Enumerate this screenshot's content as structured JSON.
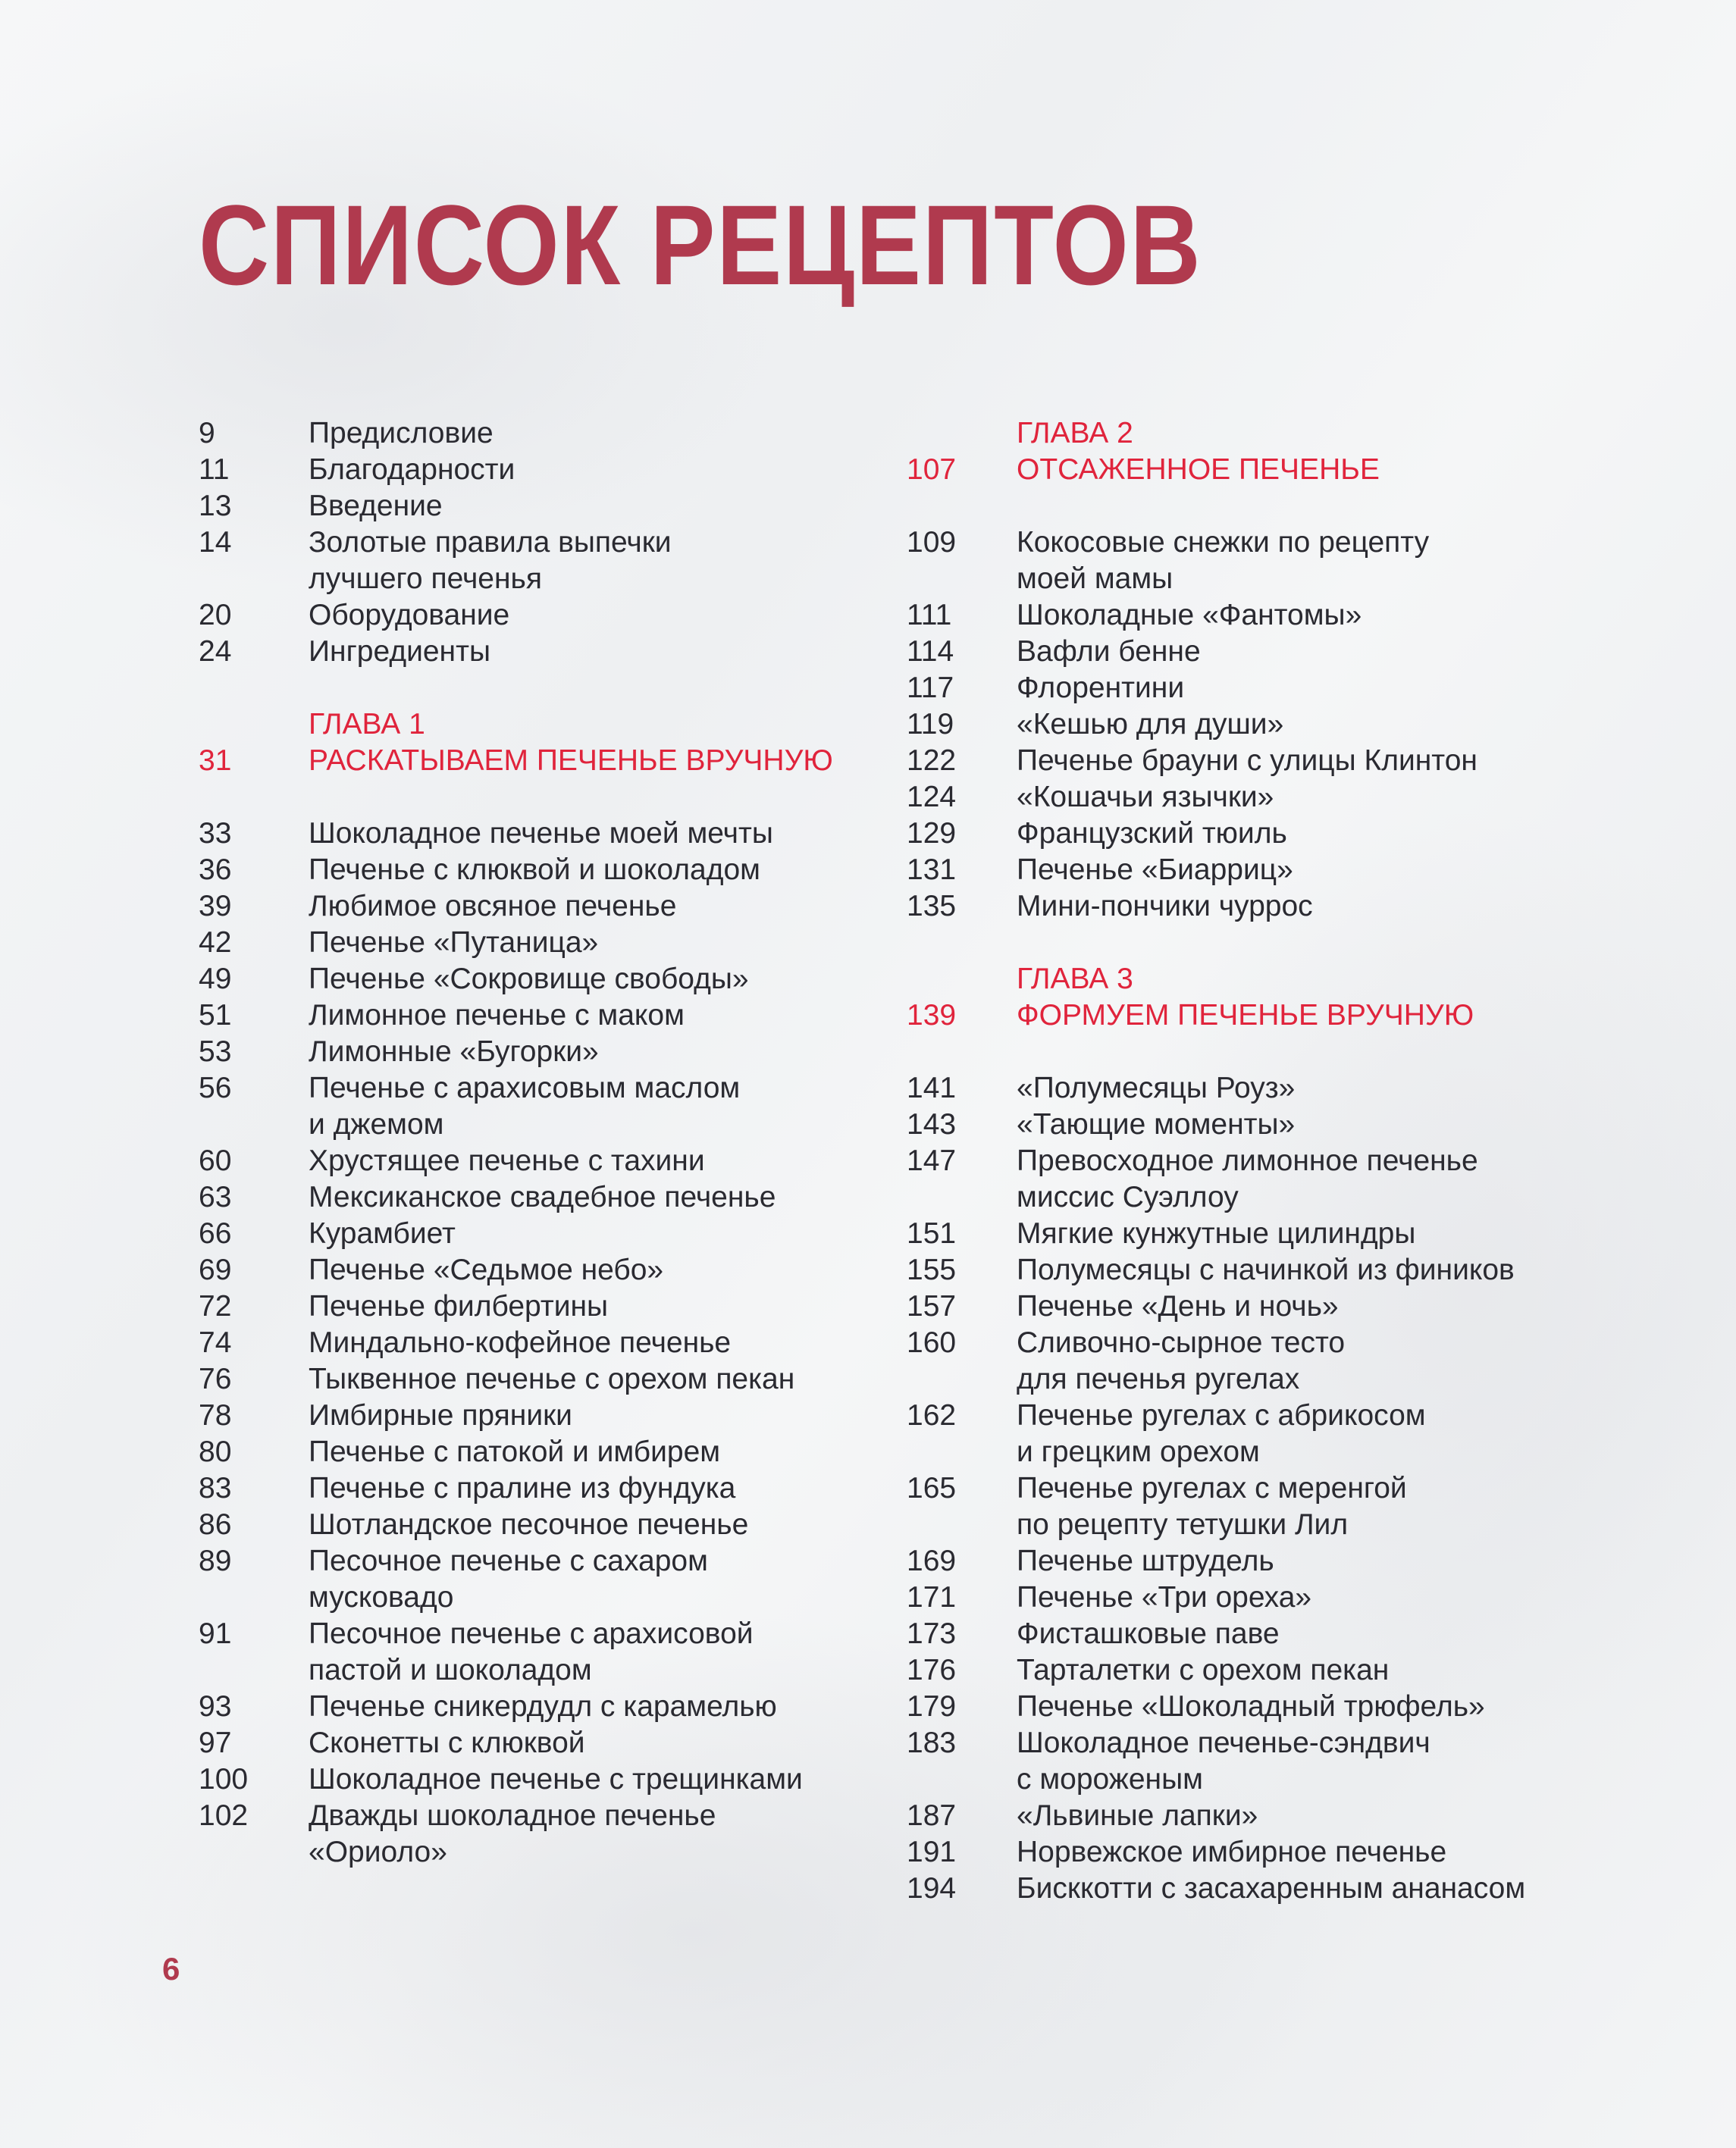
{
  "colors": {
    "title": "#b03a4e",
    "chapter": "#e0243c",
    "text": "#2a2a31"
  },
  "title": "СПИСОК РЕЦЕПТОВ",
  "page_number": "6",
  "left_column": [
    {
      "page": "9",
      "lines": [
        "Предисловие"
      ]
    },
    {
      "page": "11",
      "lines": [
        "Благодарности"
      ]
    },
    {
      "page": "13",
      "lines": [
        "Введение"
      ]
    },
    {
      "page": "14",
      "lines": [
        "Золотые правила выпечки",
        "лучшего печенья"
      ]
    },
    {
      "page": "20",
      "lines": [
        "Оборудование"
      ]
    },
    {
      "page": "24",
      "lines": [
        "Ингредиенты"
      ]
    },
    {
      "spacer": true
    },
    {
      "chapter": true,
      "label": "ГЛАВА 1",
      "page": "31",
      "lines": [
        "РАСКАТЫВАЕМ ПЕЧЕНЬЕ ВРУЧНУЮ"
      ]
    },
    {
      "spacer": true
    },
    {
      "page": "33",
      "lines": [
        "Шоколадное печенье моей мечты"
      ]
    },
    {
      "page": "36",
      "lines": [
        "Печенье с клюквой и шоколадом"
      ]
    },
    {
      "page": "39",
      "lines": [
        "Любимое овсяное печенье"
      ]
    },
    {
      "page": "42",
      "lines": [
        "Печенье «Путаница»"
      ]
    },
    {
      "page": "49",
      "lines": [
        "Печенье «Сокровище свободы»"
      ]
    },
    {
      "page": "51",
      "lines": [
        "Лимонное печенье с маком"
      ]
    },
    {
      "page": "53",
      "lines": [
        "Лимонные «Бугорки»"
      ]
    },
    {
      "page": "56",
      "lines": [
        "Печенье с арахисовым маслом",
        "и джемом"
      ]
    },
    {
      "page": "60",
      "lines": [
        "Хрустящее печенье с тахини"
      ]
    },
    {
      "page": "63",
      "lines": [
        "Мексиканское свадебное печенье"
      ]
    },
    {
      "page": "66",
      "lines": [
        "Курамбиет"
      ]
    },
    {
      "page": "69",
      "lines": [
        "Печенье «Седьмое небо»"
      ]
    },
    {
      "page": "72",
      "lines": [
        "Печенье филбертины"
      ]
    },
    {
      "page": "74",
      "lines": [
        "Миндально-кофейное печенье"
      ]
    },
    {
      "page": "76",
      "lines": [
        "Тыквенное печенье с орехом пекан"
      ]
    },
    {
      "page": "78",
      "lines": [
        "Имбирные пряники"
      ]
    },
    {
      "page": "80",
      "lines": [
        "Печенье с патокой и имбирем"
      ]
    },
    {
      "page": "83",
      "lines": [
        "Печенье с пралине из фундука"
      ]
    },
    {
      "page": "86",
      "lines": [
        "Шотландское песочное печенье"
      ]
    },
    {
      "page": "89",
      "lines": [
        "Песочное печенье с сахаром",
        "мусковадо"
      ]
    },
    {
      "page": "91",
      "lines": [
        "Песочное печенье с арахисовой",
        "пастой и шоколадом"
      ]
    },
    {
      "page": "93",
      "lines": [
        "Печенье сникердудл с карамелью"
      ]
    },
    {
      "page": "97",
      "lines": [
        "Сконетты с клюквой"
      ]
    },
    {
      "page": "100",
      "lines": [
        "Шоколадное печенье с трещинками"
      ]
    },
    {
      "page": "102",
      "lines": [
        "Дважды шоколадное печенье",
        "«Ориоло»"
      ]
    }
  ],
  "right_column": [
    {
      "chapter": true,
      "label": "ГЛАВА 2",
      "page": "107",
      "lines": [
        "ОТСАЖЕННОЕ ПЕЧЕНЬЕ"
      ]
    },
    {
      "spacer": true
    },
    {
      "page": "109",
      "lines": [
        "Кокосовые снежки по рецепту",
        "моей мамы"
      ]
    },
    {
      "page": "111",
      "lines": [
        "Шоколадные «Фантомы»"
      ]
    },
    {
      "page": "114",
      "lines": [
        "Вафли бенне"
      ]
    },
    {
      "page": "117",
      "lines": [
        "Флорентини"
      ]
    },
    {
      "page": "119",
      "lines": [
        "«Кешью для души»"
      ]
    },
    {
      "page": "122",
      "lines": [
        "Печенье брауни с улицы Клинтон"
      ]
    },
    {
      "page": "124",
      "lines": [
        "«Кошачьи язычки»"
      ]
    },
    {
      "page": "129",
      "lines": [
        "Французский тюиль"
      ]
    },
    {
      "page": "131",
      "lines": [
        "Печенье «Биарриц»"
      ]
    },
    {
      "page": "135",
      "lines": [
        "Мини-пончики чуррос"
      ]
    },
    {
      "spacer": true
    },
    {
      "chapter": true,
      "label": "ГЛАВА 3",
      "page": "139",
      "lines": [
        "ФОРМУЕМ ПЕЧЕНЬЕ ВРУЧНУЮ"
      ]
    },
    {
      "spacer": true
    },
    {
      "page": "141",
      "lines": [
        "«Полумесяцы Роуз»"
      ]
    },
    {
      "page": "143",
      "lines": [
        "«Тающие моменты»"
      ]
    },
    {
      "page": "147",
      "lines": [
        "Превосходное лимонное печенье",
        "миссис Суэллоу"
      ]
    },
    {
      "page": "151",
      "lines": [
        "Мягкие кунжутные цилиндры"
      ]
    },
    {
      "page": "155",
      "lines": [
        "Полумесяцы с начинкой из фиников"
      ]
    },
    {
      "page": "157",
      "lines": [
        "Печенье «День и ночь»"
      ]
    },
    {
      "page": "160",
      "lines": [
        "Сливочно-сырное тесто",
        "для печенья ругелах"
      ]
    },
    {
      "page": "162",
      "lines": [
        "Печенье ругелах с абрикосом",
        "и грецким орехом"
      ]
    },
    {
      "page": "165",
      "lines": [
        "Печенье ругелах с меренгой",
        "по рецепту тетушки Лил"
      ]
    },
    {
      "page": "169",
      "lines": [
        "Печенье штрудель"
      ]
    },
    {
      "page": "171",
      "lines": [
        "Печенье «Три ореха»"
      ]
    },
    {
      "page": "173",
      "lines": [
        "Фисташковые паве"
      ]
    },
    {
      "page": "176",
      "lines": [
        "Тарталетки с орехом пекан"
      ]
    },
    {
      "page": "179",
      "lines": [
        "Печенье «Шоколадный трюфель»"
      ]
    },
    {
      "page": "183",
      "lines": [
        "Шоколадное печенье-сэндвич",
        "с мороженым"
      ]
    },
    {
      "page": "187",
      "lines": [
        "«Львиные лапки»"
      ]
    },
    {
      "page": "191",
      "lines": [
        "Норвежское имбирное печенье"
      ]
    },
    {
      "page": "194",
      "lines": [
        "Бисккотти с засахаренным ананасом"
      ]
    }
  ]
}
